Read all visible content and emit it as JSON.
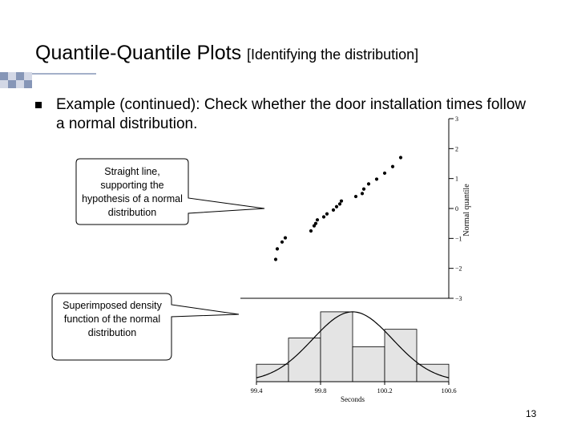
{
  "slide": {
    "title_main": "Quantile-Quantile Plots",
    "title_sub": "[Identifying the distribution]",
    "bullet_text": "Example (continued): Check whether the door installation times follow a normal distribution.",
    "page_number": "13"
  },
  "callouts": {
    "straight_line": "Straight line, supporting the hypothesis of a normal distribution",
    "density": "Superimposed density function of the normal distribution"
  },
  "chart_data": [
    {
      "type": "scatter",
      "ylabel": "Normal quantile",
      "y_ticks": [
        "3",
        "2",
        "1",
        "0",
        "−1",
        "−2",
        "−3"
      ],
      "ylim": [
        -3,
        3
      ],
      "xlim": [
        99.4,
        100.6
      ],
      "grid": false,
      "points": [
        {
          "x": 99.52,
          "y": -1.7
        },
        {
          "x": 99.53,
          "y": -1.35
        },
        {
          "x": 99.56,
          "y": -1.12
        },
        {
          "x": 99.58,
          "y": -0.98
        },
        {
          "x": 99.74,
          "y": -0.75
        },
        {
          "x": 99.76,
          "y": -0.58
        },
        {
          "x": 99.77,
          "y": -0.5
        },
        {
          "x": 99.78,
          "y": -0.38
        },
        {
          "x": 99.82,
          "y": -0.28
        },
        {
          "x": 99.84,
          "y": -0.18
        },
        {
          "x": 99.88,
          "y": -0.05
        },
        {
          "x": 99.9,
          "y": 0.06
        },
        {
          "x": 99.92,
          "y": 0.15
        },
        {
          "x": 99.93,
          "y": 0.25
        },
        {
          "x": 100.02,
          "y": 0.4
        },
        {
          "x": 100.06,
          "y": 0.5
        },
        {
          "x": 100.07,
          "y": 0.65
        },
        {
          "x": 100.1,
          "y": 0.82
        },
        {
          "x": 100.15,
          "y": 0.98
        },
        {
          "x": 100.2,
          "y": 1.18
        },
        {
          "x": 100.25,
          "y": 1.4
        },
        {
          "x": 100.3,
          "y": 1.7
        }
      ]
    },
    {
      "type": "bar",
      "xlabel": "Seconds",
      "x_ticks": [
        "99.4",
        "99.8",
        "100.2",
        "100.6"
      ],
      "xlim": [
        99.4,
        100.6
      ],
      "bin_edges": [
        99.4,
        99.6,
        99.8,
        100.0,
        100.2,
        100.4,
        100.6
      ],
      "values": [
        2,
        5,
        8,
        4,
        6,
        2
      ],
      "ylim": [
        0,
        9
      ],
      "overlay": "normal density curve",
      "curve_mean": 100.0,
      "curve_sd": 0.25,
      "curve_peak": 8
    }
  ]
}
